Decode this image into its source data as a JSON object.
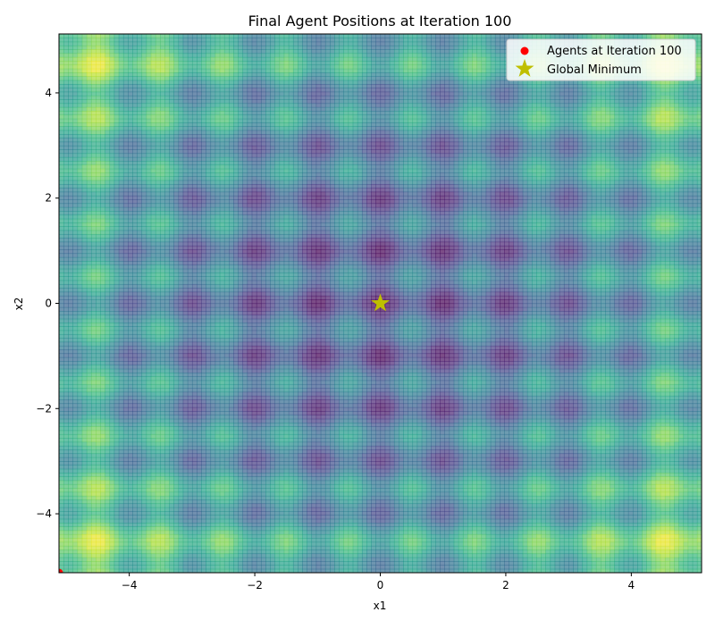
{
  "chart_data": {
    "type": "contour_scatter",
    "title": "Final Agent Positions at Iteration 100",
    "xlabel": "x1",
    "ylabel": "x2",
    "xlim": [
      -5.12,
      5.12
    ],
    "ylim": [
      -5.12,
      5.12
    ],
    "xticks": [
      -4,
      -2,
      0,
      2,
      4
    ],
    "yticks": [
      -4,
      -2,
      0,
      2,
      4
    ],
    "xtick_labels": [
      "−4",
      "−2",
      "0",
      "2",
      "4"
    ],
    "ytick_labels": [
      "−4",
      "−2",
      "0",
      "2",
      "4"
    ],
    "grid": false,
    "surface": {
      "function": "Rastrigin",
      "colormap": "viridis",
      "opacity": 0.7,
      "colors": [
        "#440154",
        "#31688e",
        "#35b779",
        "#fde725"
      ]
    },
    "series": [
      {
        "name": "Agents at Iteration 100",
        "type": "scatter",
        "marker": "circle",
        "color": "#ff0000",
        "points": [
          {
            "x": -5.12,
            "y": -5.12
          }
        ]
      },
      {
        "name": "Global Minimum",
        "type": "scatter",
        "marker": "star",
        "color": "#bfbf00",
        "points": [
          {
            "x": 0,
            "y": 0
          }
        ]
      }
    ],
    "legend": {
      "location": "top-right",
      "entries": [
        "Agents at Iteration 100",
        "Global Minimum"
      ]
    }
  }
}
